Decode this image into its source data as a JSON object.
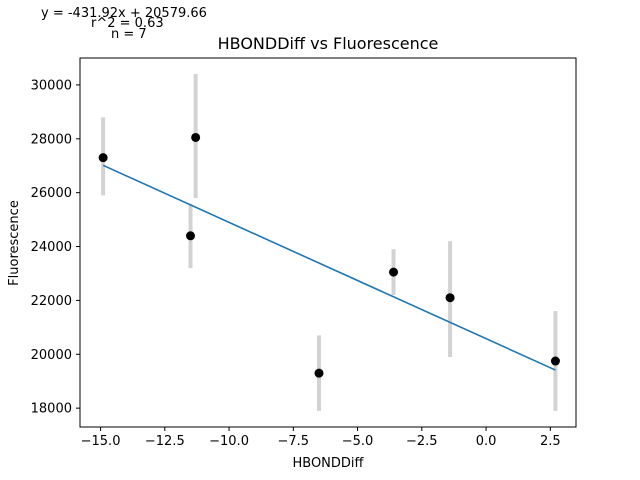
{
  "chart_data": {
    "type": "scatter",
    "title": "HBONDDiff vs Fluorescence",
    "xlabel": "HBONDDiff",
    "ylabel": "Fluorescence",
    "xlim": [
      -15.8,
      3.5
    ],
    "ylim": [
      17300,
      31000
    ],
    "x_ticks": [
      -15.0,
      -12.5,
      -10.0,
      -7.5,
      -5.0,
      -2.5,
      0.0,
      2.5
    ],
    "x_tick_labels": [
      "−15.0",
      "−12.5",
      "−10.0",
      "−7.5",
      "−5.0",
      "−2.5",
      "0.0",
      "2.5"
    ],
    "y_ticks": [
      18000,
      20000,
      22000,
      24000,
      26000,
      28000,
      30000
    ],
    "y_tick_labels": [
      "18000",
      "20000",
      "22000",
      "24000",
      "26000",
      "28000",
      "30000"
    ],
    "grid": false,
    "points": [
      {
        "x": -14.9,
        "y": 27300,
        "err_low": 25900,
        "err_high": 28800
      },
      {
        "x": -11.3,
        "y": 28050,
        "err_low": 25800,
        "err_high": 30400
      },
      {
        "x": -11.5,
        "y": 24400,
        "err_low": 23200,
        "err_high": 25600
      },
      {
        "x": -6.5,
        "y": 19300,
        "err_low": 17900,
        "err_high": 20700
      },
      {
        "x": -3.6,
        "y": 23050,
        "err_low": 22200,
        "err_high": 23900
      },
      {
        "x": -1.4,
        "y": 22100,
        "err_low": 19900,
        "err_high": 24200
      },
      {
        "x": 2.7,
        "y": 19750,
        "err_low": 17900,
        "err_high": 21600
      }
    ],
    "fit": {
      "slope": -431.92,
      "intercept": 20579.66,
      "x_range": [
        -14.9,
        2.7
      ]
    },
    "annotations": [
      "y = -431.92x + 20579.66",
      "r^2 = 0.63",
      "n = 7"
    ],
    "colors": {
      "points": "#000000",
      "error_bars": "#d3d3d3",
      "fit_line": "#1f77b4",
      "axes": "#000000"
    }
  }
}
